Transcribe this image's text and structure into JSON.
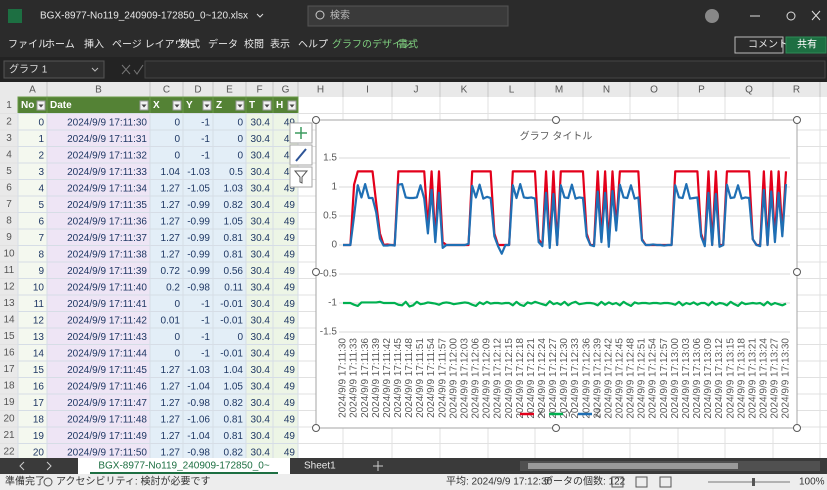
{
  "title_bar": {
    "file_name": "BGX-8977-No119_240909-172850_0~120.xlsx",
    "search": "検索"
  },
  "ribbon": {
    "tabs": [
      "ファイル",
      "ホーム",
      "挿入",
      "ページ レイアウト",
      "数式",
      "データ",
      "校閲",
      "表示",
      "ヘルプ",
      "グラフのデザイン",
      "書式"
    ],
    "comment": "コメント",
    "share": "共有"
  },
  "formula_bar": {
    "name_box": "グラフ 1",
    "fx": "fx"
  },
  "sheet": {
    "columns": [
      "A",
      "B",
      "C",
      "D",
      "E",
      "F",
      "G",
      "H",
      "I",
      "J",
      "K",
      "L",
      "M",
      "N",
      "O",
      "P",
      "Q",
      "R"
    ],
    "row_numbers": [
      1,
      2,
      3,
      4,
      5,
      6,
      7,
      8,
      9,
      10,
      11,
      12,
      13,
      14,
      15,
      16,
      17,
      18,
      19,
      20,
      21,
      22
    ],
    "header": [
      "No",
      "Date",
      "X",
      "Y",
      "Z",
      "T",
      "H"
    ],
    "rows": [
      [
        0,
        "2024/9/9 17:11:30",
        0,
        -1,
        0,
        30.4,
        49
      ],
      [
        1,
        "2024/9/9 17:11:31",
        0,
        -1,
        0,
        30.4,
        49
      ],
      [
        2,
        "2024/9/9 17:11:32",
        0,
        -1,
        0,
        30.4,
        49
      ],
      [
        3,
        "2024/9/9 17:11:33",
        1.04,
        -1.03,
        0.5,
        30.4,
        49
      ],
      [
        4,
        "2024/9/9 17:11:34",
        1.27,
        -1.05,
        1.03,
        30.4,
        49
      ],
      [
        5,
        "2024/9/9 17:11:35",
        1.27,
        -0.99,
        0.82,
        30.4,
        49
      ],
      [
        6,
        "2024/9/9 17:11:36",
        1.27,
        -0.99,
        1.05,
        30.4,
        49
      ],
      [
        7,
        "2024/9/9 17:11:37",
        1.27,
        -0.99,
        0.81,
        30.4,
        49
      ],
      [
        8,
        "2024/9/9 17:11:38",
        1.27,
        -0.99,
        0.81,
        30.4,
        49
      ],
      [
        9,
        "2024/9/9 17:11:39",
        0.72,
        -0.99,
        0.56,
        30.4,
        49
      ],
      [
        10,
        "2024/9/9 17:11:40",
        0.2,
        -0.98,
        0.11,
        30.4,
        49
      ],
      [
        11,
        "2024/9/9 17:11:41",
        0,
        -1,
        -0.01,
        30.4,
        49
      ],
      [
        12,
        "2024/9/9 17:11:42",
        0.01,
        -1,
        -0.01,
        30.4,
        49
      ],
      [
        13,
        "2024/9/9 17:11:43",
        0,
        -1,
        0,
        30.4,
        49
      ],
      [
        14,
        "2024/9/9 17:11:44",
        0,
        -1,
        -0.01,
        30.4,
        49
      ],
      [
        15,
        "2024/9/9 17:11:45",
        1.27,
        -1.03,
        1.04,
        30.4,
        49
      ],
      [
        16,
        "2024/9/9 17:11:46",
        1.27,
        -1.04,
        1.05,
        30.4,
        49
      ],
      [
        17,
        "2024/9/9 17:11:47",
        1.27,
        -0.98,
        0.82,
        30.4,
        49
      ],
      [
        18,
        "2024/9/9 17:11:48",
        1.27,
        -1.06,
        0.81,
        30.4,
        49
      ],
      [
        19,
        "2024/9/9 17:11:49",
        1.27,
        -1.04,
        0.81,
        30.4,
        49
      ],
      [
        20,
        "2024/9/9 17:11:50",
        1.27,
        -0.98,
        0.82,
        30.4,
        49
      ]
    ]
  },
  "chart_data": {
    "type": "line",
    "title": "グラフ タイトル",
    "categories": [
      "2024/9/9 17:11:30",
      null,
      null,
      "2024/9/9 17:11:33",
      null,
      null,
      "2024/9/9 17:11:36",
      null,
      null,
      "2024/9/9 17:11:39",
      null,
      null,
      "2024/9/9 17:11:42",
      null,
      null,
      "2024/9/9 17:11:45",
      null,
      null,
      "2024/9/9 17:11:48",
      null,
      null,
      "2024/9/9 17:11:51",
      null,
      null,
      "2024/9/9 17:11:54",
      null,
      null,
      "2024/9/9 17:11:57",
      null,
      null,
      "2024/9/9 17:12:00",
      null,
      null,
      "2024/9/9 17:12:03",
      null,
      null,
      "2024/9/9 17:12:06",
      null,
      null,
      "2024/9/9 17:12:09",
      null,
      null,
      "2024/9/9 17:12:12",
      null,
      null,
      "2024/9/9 17:12:15",
      null,
      null,
      "2024/9/9 17:12:18",
      null,
      null,
      "2024/9/9 17:12:21",
      null,
      null,
      "2024/9/9 17:12:24",
      null,
      null,
      "2024/9/9 17:12:27",
      null,
      null,
      "2024/9/9 17:12:30",
      null,
      null,
      "2024/9/9 17:12:33",
      null,
      null,
      "2024/9/9 17:12:36",
      null,
      null,
      "2024/9/9 17:12:39",
      null,
      null,
      "2024/9/9 17:12:42",
      null,
      null,
      "2024/9/9 17:12:45",
      null,
      null,
      "2024/9/9 17:12:48",
      null,
      null,
      "2024/9/9 17:12:51",
      null,
      null,
      "2024/9/9 17:12:54",
      null,
      null,
      "2024/9/9 17:12:57",
      null,
      null,
      "2024/9/9 17:13:00",
      null,
      null,
      "2024/9/9 17:13:03",
      null,
      null,
      "2024/9/9 17:13:06",
      null,
      null,
      "2024/9/9 17:13:09",
      null,
      null,
      "2024/9/9 17:13:12",
      null,
      null,
      "2024/9/9 17:13:15",
      null,
      null,
      "2024/9/9 17:13:18",
      null,
      null,
      "2024/9/9 17:13:21",
      null,
      null,
      "2024/9/9 17:13:24",
      null,
      null,
      "2024/9/9 17:13:27",
      null,
      null,
      "2024/9/9 17:13:30"
    ],
    "series": [
      {
        "name": "X",
        "color": "#e3001b",
        "values": [
          0,
          0,
          0,
          1.04,
          1.27,
          1.27,
          1.27,
          1.27,
          1.27,
          0.72,
          0.2,
          0,
          0.01,
          0,
          0,
          1.27,
          1.27,
          1.27,
          1.27,
          1.27,
          1.27,
          1.27,
          1.27,
          0.3,
          1.27,
          0.1,
          1.27,
          0.05,
          0,
          0,
          0,
          0,
          0,
          0,
          0,
          1.27,
          1.27,
          1.27,
          1.27,
          1.27,
          1.27,
          0.2,
          0,
          0,
          0,
          0,
          1.27,
          1.27,
          1.27,
          1.27,
          1.27,
          1.27,
          1.27,
          0.1,
          0,
          1.27,
          0,
          1.27,
          0,
          1.27,
          1.27,
          1.27,
          1.27,
          1.27,
          1.27,
          1.27,
          0.2,
          0,
          0,
          1.27,
          0.1,
          1.27,
          0,
          1.27,
          0.3,
          1.27,
          1.27,
          1.27,
          1.27,
          1.27,
          1.27,
          0.1,
          0,
          0,
          0,
          0,
          0,
          0,
          0,
          0,
          1.27,
          1.27,
          1.27,
          1.27,
          1.27,
          1.27,
          1.27,
          0.2,
          0,
          1.27,
          0,
          1.27,
          0,
          0,
          1.27,
          1.27,
          1.27,
          1.27,
          1.27,
          1.27,
          1.27,
          0.1,
          0,
          0,
          1.27,
          0,
          1.27,
          0.1,
          1.27,
          0.2,
          1.27
        ]
      },
      {
        "name": "Y",
        "color": "#00b050",
        "values": [
          -1,
          -1,
          -1,
          -1.03,
          -1.05,
          -0.99,
          -0.99,
          -0.99,
          -0.99,
          -0.99,
          -0.98,
          -1,
          -1,
          -1,
          -1,
          -1.03,
          -1.04,
          -0.98,
          -1.06,
          -1.04,
          -0.98,
          -1.02,
          -1.01,
          -0.99,
          -1,
          -1.01,
          -1.03,
          -1,
          -0.99,
          -1,
          -1.02,
          -1.01,
          -1,
          -0.99,
          -1,
          -1.03,
          -1.05,
          -0.99,
          -1.02,
          -0.98,
          -1.01,
          -1,
          -1,
          -1.01,
          -1,
          -1,
          -1.04,
          -0.98,
          -1.03,
          -1.05,
          -0.99,
          -1.01,
          -0.98,
          -1,
          -1.02,
          -1.04,
          -0.97,
          -1.02,
          -1,
          -1.03,
          -0.98,
          -1.04,
          -1,
          -0.98,
          -1.02,
          -1.01,
          -1,
          -1,
          -1.01,
          -1.04,
          -0.98,
          -1.03,
          -0.99,
          -1.02,
          -1,
          -1.04,
          -0.98,
          -1.02,
          -1.05,
          -0.99,
          -1.01,
          -1,
          -1,
          -1.01,
          -1,
          -1,
          -1.01,
          -1,
          -1,
          -1.01,
          -1.03,
          -0.98,
          -1.04,
          -1,
          -1.02,
          -0.99,
          -1.03,
          -1,
          -1,
          -1.04,
          -0.98,
          -1.03,
          -1,
          -1.01,
          -1.04,
          -0.98,
          -1.02,
          -1.05,
          -0.99,
          -1.02,
          -1.01,
          -1,
          -1.01,
          -1,
          -1.04,
          -0.98,
          -1.03,
          -1,
          -1.02,
          -1.04,
          -1.01
        ]
      },
      {
        "name": "Z",
        "color": "#1f6fb4",
        "values": [
          0,
          0,
          0,
          0.5,
          1.03,
          0.82,
          1.05,
          0.81,
          0.81,
          0.56,
          0.11,
          -0.01,
          -0.01,
          0,
          -0.01,
          1.04,
          1.05,
          0.82,
          0.81,
          0.81,
          0.82,
          1.03,
          0.8,
          0.2,
          0.95,
          0.05,
          0.9,
          -0.05,
          0,
          0,
          0,
          0,
          0,
          0,
          0.02,
          1.02,
          0.82,
          1.04,
          0.8,
          0.83,
          0.81,
          0.15,
          -0.02,
          -0.15,
          0,
          0,
          1.03,
          0.81,
          1.05,
          0.82,
          0.81,
          0.82,
          0.8,
          0.05,
          -0.02,
          0.9,
          -0.05,
          0.88,
          0,
          1.03,
          0.82,
          0.81,
          1.04,
          0.8,
          0.82,
          0.81,
          0.15,
          0,
          -0.02,
          0.92,
          0.05,
          0.9,
          -0.03,
          0.93,
          0.25,
          1.04,
          0.82,
          0.81,
          1.03,
          0.8,
          0.82,
          0.08,
          0,
          0,
          0.01,
          0,
          0,
          -0.01,
          0,
          0,
          1.03,
          0.82,
          0.81,
          1.05,
          0.8,
          0.81,
          0.82,
          0.15,
          -0.02,
          0.9,
          0,
          0.88,
          -0.03,
          0,
          1.04,
          0.81,
          0.82,
          1.03,
          0.8,
          0.82,
          0.81,
          0.1,
          0,
          -0.02,
          0.95,
          0,
          0.92,
          0.05,
          0.9,
          0.15,
          1.05
        ]
      }
    ],
    "ylim": [
      -1.5,
      1.5
    ],
    "yticks": [
      -1.5,
      -1,
      -0.5,
      0,
      0.5,
      1,
      1.5
    ],
    "grid": true,
    "legend": "bottom"
  },
  "sheet_tabs": {
    "active": "BGX-8977-No119_240909-172850_0~",
    "other": "Sheet1"
  },
  "status_bar": {
    "ready": "準備完了",
    "accessibility": "アクセシビリティ: 検討が必要です",
    "average": "平均: 2024/9/9 17:12:30",
    "count": "データの個数: 122",
    "zoom": "100%"
  }
}
